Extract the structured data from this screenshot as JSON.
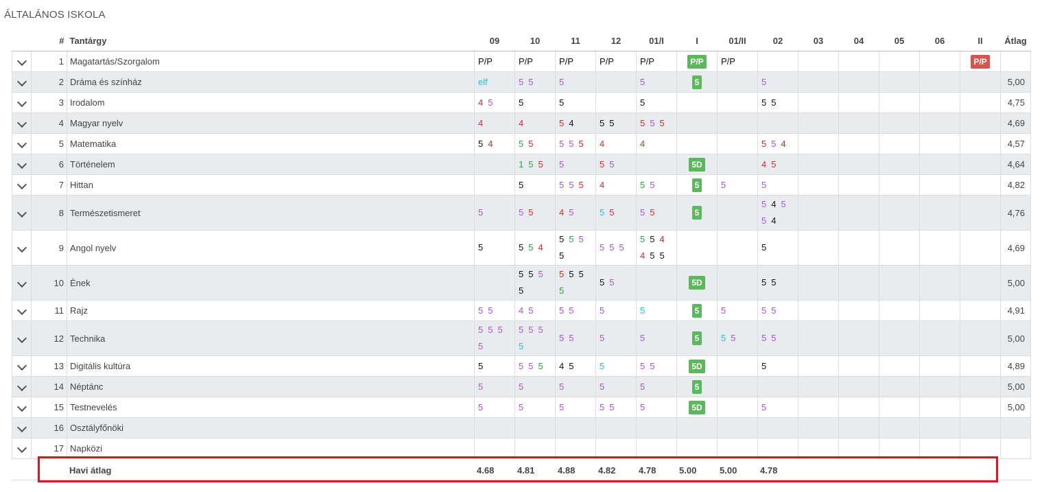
{
  "section_title": "ÁLTALÁNOS ISKOLA",
  "headers": {
    "num": "#",
    "subject": "Tantárgy",
    "avg": "Átlag",
    "months": [
      "09",
      "10",
      "11",
      "12",
      "01/I",
      "I",
      "01/II",
      "02",
      "03",
      "04",
      "05",
      "06",
      "II"
    ]
  },
  "rows": [
    {
      "num": "1",
      "subject": "Magatartás/Szorgalom",
      "avg": "",
      "m09": [
        [
          "P/P",
          "black"
        ]
      ],
      "m10": [
        [
          "P/P",
          "black"
        ]
      ],
      "m11": [
        [
          "P/P",
          "black"
        ]
      ],
      "m12": [
        [
          "P/P",
          "black"
        ]
      ],
      "m01i": [
        [
          "P/P",
          "black"
        ]
      ],
      "I": "P/P",
      "m01ii": [
        [
          "P/P",
          "black"
        ]
      ],
      "m02": [],
      "II": "P/P"
    },
    {
      "num": "2",
      "subject": "Dráma és színház",
      "avg": "5,00",
      "m09": [
        [
          "elf",
          "cyan"
        ]
      ],
      "m10": [
        [
          "5",
          "purple"
        ],
        [
          "5",
          "purple"
        ]
      ],
      "m11": [
        [
          "5",
          "purple"
        ]
      ],
      "m12": [],
      "m01i": [
        [
          "5",
          "purple"
        ]
      ],
      "I": "5",
      "m01ii": [],
      "m02": [
        [
          "5",
          "purple"
        ]
      ],
      "II": ""
    },
    {
      "num": "3",
      "subject": "Irodalom",
      "avg": "4,75",
      "m09": [
        [
          "4",
          "red"
        ],
        [
          "5",
          "purple"
        ]
      ],
      "m10": [
        [
          "5",
          "black"
        ]
      ],
      "m11": [
        [
          "5",
          "black"
        ]
      ],
      "m12": [],
      "m01i": [
        [
          "5",
          "black"
        ]
      ],
      "I": "",
      "m01ii": [],
      "m02": [
        [
          "5",
          "black"
        ],
        [
          "5",
          "black"
        ]
      ],
      "II": ""
    },
    {
      "num": "4",
      "subject": "Magyar nyelv",
      "avg": "4,69",
      "m09": [
        [
          "4",
          "red"
        ]
      ],
      "m10": [
        [
          "4",
          "red"
        ]
      ],
      "m11": [
        [
          "5",
          "red"
        ],
        [
          "4",
          "black"
        ]
      ],
      "m12": [
        [
          "5",
          "black"
        ],
        [
          "5",
          "black"
        ]
      ],
      "m01i": [
        [
          "5",
          "red"
        ],
        [
          "5",
          "purple"
        ],
        [
          "5",
          "red"
        ]
      ],
      "I": "",
      "m01ii": [],
      "m02": [],
      "II": ""
    },
    {
      "num": "5",
      "subject": "Matematika",
      "avg": "4,57",
      "m09": [
        [
          "5",
          "black"
        ],
        [
          "4",
          "red"
        ]
      ],
      "m10": [
        [
          "5",
          "green"
        ],
        [
          "5",
          "red"
        ]
      ],
      "m11": [
        [
          "5",
          "purple"
        ],
        [
          "5",
          "purple"
        ],
        [
          "5",
          "red"
        ]
      ],
      "m12": [
        [
          "4",
          "red"
        ]
      ],
      "m01i": [
        [
          "4",
          "red"
        ]
      ],
      "I": "",
      "m01ii": [],
      "m02": [
        [
          "5",
          "red"
        ],
        [
          "5",
          "purple"
        ],
        [
          "4",
          "red"
        ]
      ],
      "II": ""
    },
    {
      "num": "6",
      "subject": "Történelem",
      "avg": "4,64",
      "m09": [],
      "m10": [
        [
          "1",
          "green"
        ],
        [
          "5",
          "green"
        ],
        [
          "5",
          "red"
        ]
      ],
      "m11": [
        [
          "5",
          "purple"
        ]
      ],
      "m12": [
        [
          "5",
          "red"
        ],
        [
          "5",
          "purple"
        ]
      ],
      "m01i": [],
      "I": "5D",
      "m01ii": [],
      "m02": [
        [
          "4",
          "red"
        ],
        [
          "5",
          "red"
        ]
      ],
      "II": ""
    },
    {
      "num": "7",
      "subject": "Hittan",
      "avg": "4,82",
      "m09": [],
      "m10": [
        [
          "5",
          "black"
        ]
      ],
      "m11": [
        [
          "5",
          "purple"
        ],
        [
          "5",
          "purple"
        ],
        [
          "5",
          "red"
        ]
      ],
      "m12": [
        [
          "4",
          "red"
        ]
      ],
      "m01i": [
        [
          "5",
          "green"
        ],
        [
          "5",
          "purple"
        ]
      ],
      "I": "5",
      "m01ii": [
        [
          "5",
          "purple"
        ]
      ],
      "m02": [
        [
          "5",
          "purple"
        ]
      ],
      "II": ""
    },
    {
      "num": "8",
      "subject": "Természetismeret",
      "avg": "4,76",
      "m09": [
        [
          "5",
          "purple"
        ]
      ],
      "m10": [
        [
          "5",
          "purple"
        ],
        [
          "5",
          "red"
        ]
      ],
      "m11": [
        [
          "4",
          "red"
        ],
        [
          "5",
          "purple"
        ]
      ],
      "m12": [
        [
          "5",
          "cyan"
        ],
        [
          "5",
          "red"
        ]
      ],
      "m01i": [
        [
          "5",
          "purple"
        ],
        [
          "5",
          "red"
        ]
      ],
      "I": "5",
      "m01ii": [],
      "m02": [
        [
          "5",
          "purple"
        ],
        [
          "4",
          "black"
        ],
        [
          "5",
          "purple"
        ],
        [
          "5",
          "purple"
        ],
        [
          "4",
          "black"
        ]
      ],
      "II": ""
    },
    {
      "num": "9",
      "subject": "Angol nyelv",
      "avg": "4,69",
      "m09": [
        [
          "5",
          "black"
        ]
      ],
      "m10": [
        [
          "5",
          "black"
        ],
        [
          "5",
          "green"
        ],
        [
          "4",
          "red"
        ]
      ],
      "m11": [
        [
          "5",
          "black"
        ],
        [
          "5",
          "green"
        ],
        [
          "5",
          "purple"
        ],
        [
          "5",
          "black"
        ]
      ],
      "m12": [
        [
          "5",
          "purple"
        ],
        [
          "5",
          "purple"
        ],
        [
          "5",
          "purple"
        ]
      ],
      "m01i": [
        [
          "5",
          "green"
        ],
        [
          "5",
          "black"
        ],
        [
          "4",
          "red"
        ],
        [
          "4",
          "red"
        ],
        [
          "5",
          "black"
        ],
        [
          "5",
          "black"
        ]
      ],
      "I": "",
      "m01ii": [],
      "m02": [
        [
          "5",
          "black"
        ]
      ],
      "II": ""
    },
    {
      "num": "10",
      "subject": "Ének",
      "avg": "5,00",
      "m09": [],
      "m10": [
        [
          "5",
          "black"
        ],
        [
          "5",
          "black"
        ],
        [
          "5",
          "purple"
        ],
        [
          "5",
          "black"
        ]
      ],
      "m11": [
        [
          "5",
          "red"
        ],
        [
          "5",
          "black"
        ],
        [
          "5",
          "black"
        ],
        [
          "5",
          "green"
        ]
      ],
      "m12": [
        [
          "5",
          "black"
        ],
        [
          "5",
          "purple"
        ]
      ],
      "m01i": [],
      "I": "5D",
      "m01ii": [],
      "m02": [
        [
          "5",
          "black"
        ],
        [
          "5",
          "black"
        ]
      ],
      "II": ""
    },
    {
      "num": "11",
      "subject": "Rajz",
      "avg": "4,91",
      "m09": [
        [
          "5",
          "purple"
        ],
        [
          "5",
          "purple"
        ]
      ],
      "m10": [
        [
          "4",
          "purple"
        ],
        [
          "5",
          "purple"
        ]
      ],
      "m11": [
        [
          "5",
          "purple"
        ],
        [
          "5",
          "purple"
        ]
      ],
      "m12": [
        [
          "5",
          "purple"
        ]
      ],
      "m01i": [
        [
          "5",
          "cyan"
        ]
      ],
      "I": "5",
      "m01ii": [
        [
          "5",
          "purple"
        ]
      ],
      "m02": [
        [
          "5",
          "purple"
        ],
        [
          "5",
          "purple"
        ]
      ],
      "II": ""
    },
    {
      "num": "12",
      "subject": "Technika",
      "avg": "5,00",
      "m09": [
        [
          "5",
          "purple"
        ],
        [
          "5",
          "purple"
        ],
        [
          "5",
          "purple"
        ],
        [
          "5",
          "purple"
        ]
      ],
      "m10": [
        [
          "5",
          "purple"
        ],
        [
          "5",
          "purple"
        ],
        [
          "5",
          "purple"
        ],
        [
          "5",
          "cyan"
        ]
      ],
      "m11": [
        [
          "5",
          "purple"
        ],
        [
          "5",
          "purple"
        ]
      ],
      "m12": [
        [
          "5",
          "purple"
        ]
      ],
      "m01i": [
        [
          "5",
          "purple"
        ]
      ],
      "I": "5",
      "m01ii": [
        [
          "5",
          "cyan"
        ],
        [
          "5",
          "purple"
        ]
      ],
      "m02": [
        [
          "5",
          "purple"
        ],
        [
          "5",
          "purple"
        ]
      ],
      "II": ""
    },
    {
      "num": "13",
      "subject": "Digitális kultúra",
      "avg": "4,89",
      "m09": [
        [
          "5",
          "black"
        ]
      ],
      "m10": [
        [
          "5",
          "purple"
        ],
        [
          "5",
          "purple"
        ],
        [
          "5",
          "green"
        ]
      ],
      "m11": [
        [
          "4",
          "black"
        ],
        [
          "5",
          "black"
        ]
      ],
      "m12": [
        [
          "5",
          "cyan"
        ]
      ],
      "m01i": [
        [
          "5",
          "purple"
        ],
        [
          "5",
          "purple"
        ]
      ],
      "I": "5D",
      "m01ii": [],
      "m02": [
        [
          "5",
          "black"
        ]
      ],
      "II": ""
    },
    {
      "num": "14",
      "subject": "Néptánc",
      "avg": "5,00",
      "m09": [
        [
          "5",
          "purple"
        ]
      ],
      "m10": [
        [
          "5",
          "purple"
        ]
      ],
      "m11": [
        [
          "5",
          "purple"
        ]
      ],
      "m12": [
        [
          "5",
          "purple"
        ]
      ],
      "m01i": [
        [
          "5",
          "purple"
        ]
      ],
      "I": "5",
      "m01ii": [],
      "m02": [],
      "II": ""
    },
    {
      "num": "15",
      "subject": "Testnevelés",
      "avg": "5,00",
      "m09": [
        [
          "5",
          "purple"
        ]
      ],
      "m10": [
        [
          "5",
          "purple"
        ]
      ],
      "m11": [
        [
          "5",
          "purple"
        ]
      ],
      "m12": [
        [
          "5",
          "purple"
        ],
        [
          "5",
          "purple"
        ]
      ],
      "m01i": [
        [
          "5",
          "purple"
        ]
      ],
      "I": "5D",
      "m01ii": [],
      "m02": [
        [
          "5",
          "purple"
        ]
      ],
      "II": ""
    },
    {
      "num": "16",
      "subject": "Osztályfőnöki",
      "avg": "",
      "m09": [],
      "m10": [],
      "m11": [],
      "m12": [],
      "m01i": [],
      "I": "",
      "m01ii": [],
      "m02": [],
      "II": ""
    },
    {
      "num": "17",
      "subject": "Napközi",
      "avg": "",
      "m09": [],
      "m10": [],
      "m11": [],
      "m12": [],
      "m01i": [],
      "I": "",
      "m01ii": [],
      "m02": [],
      "II": ""
    }
  ],
  "summary": {
    "label": "Havi átlag",
    "values": [
      "4.68",
      "4.81",
      "4.88",
      "4.82",
      "4.78",
      "5.00",
      "5.00",
      "4.78"
    ]
  },
  "colors": {
    "black": "#111111",
    "red": "#e3262c",
    "green": "#28a745",
    "purple": "#a855d6",
    "cyan": "#1bc4d6",
    "badge_green": "#5cb85c",
    "badge_red": "#d9534f",
    "highlight": "#e3121b"
  }
}
